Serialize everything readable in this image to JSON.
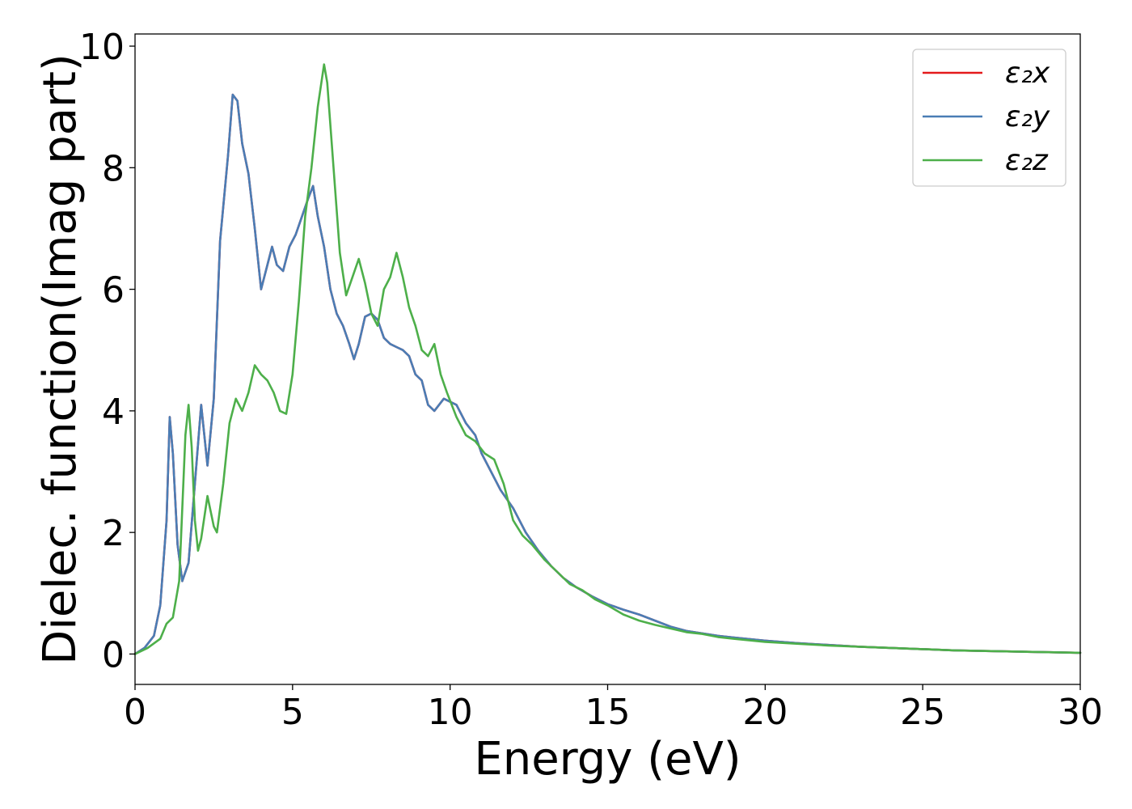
{
  "chart_data": {
    "type": "line",
    "title": "",
    "xlabel": "Energy (eV)",
    "ylabel": "Dielec. function(Imag part)",
    "xlim": [
      0,
      30
    ],
    "ylim": [
      -0.5,
      10.2
    ],
    "xticks": [
      0,
      5,
      10,
      15,
      20,
      25,
      30
    ],
    "yticks": [
      0,
      2,
      4,
      6,
      8,
      10
    ],
    "xtick_labels": [
      "0",
      "5",
      "10",
      "15",
      "20",
      "25",
      "30"
    ],
    "ytick_labels": [
      "0",
      "2",
      "4",
      "6",
      "8",
      "10"
    ],
    "grid": false,
    "legend_position": "top-right",
    "series": [
      {
        "name": "ε₂x",
        "color": "#e41a1c",
        "points": [
          [
            0,
            0
          ],
          [
            0.3,
            0.1
          ],
          [
            0.6,
            0.3
          ],
          [
            0.8,
            0.8
          ],
          [
            1.0,
            2.2
          ],
          [
            1.1,
            3.9
          ],
          [
            1.2,
            3.3
          ],
          [
            1.35,
            1.8
          ],
          [
            1.5,
            1.2
          ],
          [
            1.7,
            1.5
          ],
          [
            1.9,
            2.8
          ],
          [
            2.1,
            4.1
          ],
          [
            2.3,
            3.1
          ],
          [
            2.5,
            4.2
          ],
          [
            2.7,
            6.8
          ],
          [
            2.95,
            8.2
          ],
          [
            3.1,
            9.2
          ],
          [
            3.25,
            9.1
          ],
          [
            3.4,
            8.4
          ],
          [
            3.6,
            7.9
          ],
          [
            3.8,
            7.0
          ],
          [
            4.0,
            6.0
          ],
          [
            4.2,
            6.4
          ],
          [
            4.35,
            6.7
          ],
          [
            4.5,
            6.4
          ],
          [
            4.7,
            6.3
          ],
          [
            4.9,
            6.7
          ],
          [
            5.1,
            6.9
          ],
          [
            5.3,
            7.2
          ],
          [
            5.5,
            7.5
          ],
          [
            5.65,
            7.7
          ],
          [
            5.8,
            7.2
          ],
          [
            6.0,
            6.7
          ],
          [
            6.2,
            6.0
          ],
          [
            6.4,
            5.6
          ],
          [
            6.6,
            5.4
          ],
          [
            6.8,
            5.1
          ],
          [
            6.95,
            4.85
          ],
          [
            7.1,
            5.1
          ],
          [
            7.3,
            5.55
          ],
          [
            7.5,
            5.6
          ],
          [
            7.7,
            5.5
          ],
          [
            7.9,
            5.2
          ],
          [
            8.1,
            5.1
          ],
          [
            8.3,
            5.05
          ],
          [
            8.5,
            5.0
          ],
          [
            8.7,
            4.9
          ],
          [
            8.9,
            4.6
          ],
          [
            9.1,
            4.5
          ],
          [
            9.3,
            4.1
          ],
          [
            9.5,
            4.0
          ],
          [
            9.8,
            4.2
          ],
          [
            10.2,
            4.1
          ],
          [
            10.5,
            3.8
          ],
          [
            10.8,
            3.6
          ],
          [
            11.0,
            3.3
          ],
          [
            11.3,
            3.0
          ],
          [
            11.6,
            2.7
          ],
          [
            12.0,
            2.4
          ],
          [
            12.4,
            2.0
          ],
          [
            12.8,
            1.7
          ],
          [
            13.2,
            1.45
          ],
          [
            13.6,
            1.25
          ],
          [
            14.0,
            1.1
          ],
          [
            14.5,
            0.95
          ],
          [
            15.0,
            0.82
          ],
          [
            15.5,
            0.73
          ],
          [
            16.0,
            0.65
          ],
          [
            16.5,
            0.55
          ],
          [
            17.0,
            0.45
          ],
          [
            17.5,
            0.38
          ],
          [
            18.0,
            0.34
          ],
          [
            18.5,
            0.3
          ],
          [
            19.0,
            0.27
          ],
          [
            20.0,
            0.22
          ],
          [
            21.0,
            0.18
          ],
          [
            22.0,
            0.15
          ],
          [
            23.0,
            0.12
          ],
          [
            24.0,
            0.1
          ],
          [
            25.0,
            0.08
          ],
          [
            26.0,
            0.06
          ],
          [
            27.0,
            0.05
          ],
          [
            28.0,
            0.04
          ],
          [
            29.0,
            0.03
          ],
          [
            30.0,
            0.02
          ]
        ]
      },
      {
        "name": "ε₂y",
        "color": "#4a7db5",
        "points": [
          [
            0,
            0
          ],
          [
            0.3,
            0.1
          ],
          [
            0.6,
            0.3
          ],
          [
            0.8,
            0.8
          ],
          [
            1.0,
            2.2
          ],
          [
            1.1,
            3.9
          ],
          [
            1.2,
            3.3
          ],
          [
            1.35,
            1.8
          ],
          [
            1.5,
            1.2
          ],
          [
            1.7,
            1.5
          ],
          [
            1.9,
            2.8
          ],
          [
            2.1,
            4.1
          ],
          [
            2.3,
            3.1
          ],
          [
            2.5,
            4.2
          ],
          [
            2.7,
            6.8
          ],
          [
            2.95,
            8.2
          ],
          [
            3.1,
            9.2
          ],
          [
            3.25,
            9.1
          ],
          [
            3.4,
            8.4
          ],
          [
            3.6,
            7.9
          ],
          [
            3.8,
            7.0
          ],
          [
            4.0,
            6.0
          ],
          [
            4.2,
            6.4
          ],
          [
            4.35,
            6.7
          ],
          [
            4.5,
            6.4
          ],
          [
            4.7,
            6.3
          ],
          [
            4.9,
            6.7
          ],
          [
            5.1,
            6.9
          ],
          [
            5.3,
            7.2
          ],
          [
            5.5,
            7.5
          ],
          [
            5.65,
            7.7
          ],
          [
            5.8,
            7.2
          ],
          [
            6.0,
            6.7
          ],
          [
            6.2,
            6.0
          ],
          [
            6.4,
            5.6
          ],
          [
            6.6,
            5.4
          ],
          [
            6.8,
            5.1
          ],
          [
            6.95,
            4.85
          ],
          [
            7.1,
            5.1
          ],
          [
            7.3,
            5.55
          ],
          [
            7.5,
            5.6
          ],
          [
            7.7,
            5.5
          ],
          [
            7.9,
            5.2
          ],
          [
            8.1,
            5.1
          ],
          [
            8.3,
            5.05
          ],
          [
            8.5,
            5.0
          ],
          [
            8.7,
            4.9
          ],
          [
            8.9,
            4.6
          ],
          [
            9.1,
            4.5
          ],
          [
            9.3,
            4.1
          ],
          [
            9.5,
            4.0
          ],
          [
            9.8,
            4.2
          ],
          [
            10.2,
            4.1
          ],
          [
            10.5,
            3.8
          ],
          [
            10.8,
            3.6
          ],
          [
            11.0,
            3.3
          ],
          [
            11.3,
            3.0
          ],
          [
            11.6,
            2.7
          ],
          [
            12.0,
            2.4
          ],
          [
            12.4,
            2.0
          ],
          [
            12.8,
            1.7
          ],
          [
            13.2,
            1.45
          ],
          [
            13.6,
            1.25
          ],
          [
            14.0,
            1.1
          ],
          [
            14.5,
            0.95
          ],
          [
            15.0,
            0.82
          ],
          [
            15.5,
            0.73
          ],
          [
            16.0,
            0.65
          ],
          [
            16.5,
            0.55
          ],
          [
            17.0,
            0.45
          ],
          [
            17.5,
            0.38
          ],
          [
            18.0,
            0.34
          ],
          [
            18.5,
            0.3
          ],
          [
            19.0,
            0.27
          ],
          [
            20.0,
            0.22
          ],
          [
            21.0,
            0.18
          ],
          [
            22.0,
            0.15
          ],
          [
            23.0,
            0.12
          ],
          [
            24.0,
            0.1
          ],
          [
            25.0,
            0.08
          ],
          [
            26.0,
            0.06
          ],
          [
            27.0,
            0.05
          ],
          [
            28.0,
            0.04
          ],
          [
            29.0,
            0.03
          ],
          [
            30.0,
            0.02
          ]
        ]
      },
      {
        "name": "ε₂z",
        "color": "#4daf4a",
        "points": [
          [
            0,
            0
          ],
          [
            0.4,
            0.1
          ],
          [
            0.8,
            0.25
          ],
          [
            1.0,
            0.5
          ],
          [
            1.2,
            0.6
          ],
          [
            1.4,
            1.2
          ],
          [
            1.6,
            3.6
          ],
          [
            1.7,
            4.1
          ],
          [
            1.8,
            3.4
          ],
          [
            1.9,
            2.2
          ],
          [
            2.0,
            1.7
          ],
          [
            2.1,
            1.9
          ],
          [
            2.3,
            2.6
          ],
          [
            2.5,
            2.1
          ],
          [
            2.6,
            2.0
          ],
          [
            2.8,
            2.8
          ],
          [
            3.0,
            3.8
          ],
          [
            3.2,
            4.2
          ],
          [
            3.4,
            4.0
          ],
          [
            3.6,
            4.3
          ],
          [
            3.8,
            4.75
          ],
          [
            4.0,
            4.6
          ],
          [
            4.2,
            4.5
          ],
          [
            4.4,
            4.3
          ],
          [
            4.6,
            4.0
          ],
          [
            4.8,
            3.95
          ],
          [
            5.0,
            4.6
          ],
          [
            5.2,
            5.8
          ],
          [
            5.4,
            7.2
          ],
          [
            5.6,
            8.0
          ],
          [
            5.8,
            9.0
          ],
          [
            6.0,
            9.7
          ],
          [
            6.1,
            9.4
          ],
          [
            6.3,
            8.0
          ],
          [
            6.5,
            6.6
          ],
          [
            6.7,
            5.9
          ],
          [
            6.9,
            6.2
          ],
          [
            7.1,
            6.5
          ],
          [
            7.3,
            6.1
          ],
          [
            7.5,
            5.6
          ],
          [
            7.7,
            5.4
          ],
          [
            7.9,
            6.0
          ],
          [
            8.1,
            6.2
          ],
          [
            8.3,
            6.6
          ],
          [
            8.5,
            6.2
          ],
          [
            8.7,
            5.7
          ],
          [
            8.9,
            5.4
          ],
          [
            9.1,
            5.0
          ],
          [
            9.3,
            4.9
          ],
          [
            9.5,
            5.1
          ],
          [
            9.7,
            4.6
          ],
          [
            9.9,
            4.3
          ],
          [
            10.2,
            3.9
          ],
          [
            10.5,
            3.6
          ],
          [
            10.8,
            3.5
          ],
          [
            11.1,
            3.3
          ],
          [
            11.4,
            3.2
          ],
          [
            11.7,
            2.8
          ],
          [
            12.0,
            2.2
          ],
          [
            12.3,
            1.95
          ],
          [
            12.6,
            1.8
          ],
          [
            13.0,
            1.55
          ],
          [
            13.4,
            1.35
          ],
          [
            13.8,
            1.15
          ],
          [
            14.2,
            1.05
          ],
          [
            14.6,
            0.9
          ],
          [
            15.0,
            0.8
          ],
          [
            15.5,
            0.65
          ],
          [
            16.0,
            0.55
          ],
          [
            16.5,
            0.48
          ],
          [
            17.0,
            0.42
          ],
          [
            17.5,
            0.36
          ],
          [
            18.0,
            0.33
          ],
          [
            18.5,
            0.28
          ],
          [
            19.0,
            0.25
          ],
          [
            20.0,
            0.2
          ],
          [
            21.0,
            0.17
          ],
          [
            22.0,
            0.14
          ],
          [
            23.0,
            0.12
          ],
          [
            24.0,
            0.1
          ],
          [
            25.0,
            0.08
          ],
          [
            26.0,
            0.06
          ],
          [
            27.0,
            0.05
          ],
          [
            28.0,
            0.04
          ],
          [
            29.0,
            0.03
          ],
          [
            30.0,
            0.02
          ]
        ]
      }
    ]
  }
}
